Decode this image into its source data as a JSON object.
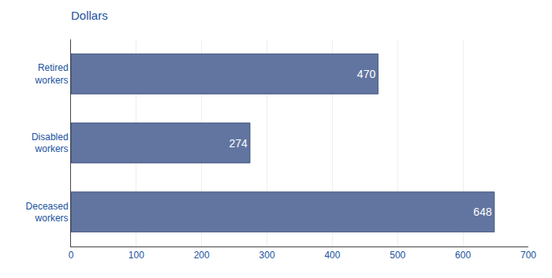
{
  "chart_data": {
    "type": "bar",
    "orientation": "horizontal",
    "title": "Dollars",
    "categories": [
      "Deceased\nworkers",
      "Disabled\nworkers",
      "Retired\nworkers"
    ],
    "values": [
      648,
      274,
      470
    ],
    "color": "#6275a0",
    "xlim": [
      0,
      700
    ],
    "xticks": [
      0,
      100,
      200,
      300,
      400,
      500,
      600,
      700
    ],
    "grid": true,
    "data_labels": true
  }
}
